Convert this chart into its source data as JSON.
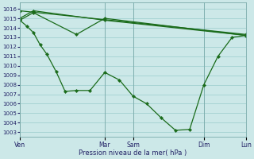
{
  "xlabel": "Pression niveau de la mer( hPa )",
  "yticks": [
    1003,
    1004,
    1005,
    1006,
    1007,
    1008,
    1009,
    1010,
    1011,
    1012,
    1013,
    1014,
    1015,
    1016
  ],
  "bg_color": "#cce8e8",
  "grid_color": "#99cccc",
  "line_color": "#1a6b1a",
  "day_labels": [
    "Ven",
    "Mar",
    "Sam",
    "Dim",
    "Lun"
  ],
  "day_positions": [
    0.0,
    0.375,
    0.5,
    0.8125,
    1.0
  ],
  "xlim": [
    0.0,
    1.0
  ],
  "ylim": [
    1002.5,
    1016.7
  ],
  "series_main": {
    "x": [
      0.0,
      0.03,
      0.06,
      0.09,
      0.12,
      0.16,
      0.2,
      0.25,
      0.31,
      0.375,
      0.44,
      0.5,
      0.56,
      0.625,
      0.6875,
      0.75,
      0.8125,
      0.875,
      0.9375,
      1.0
    ],
    "y": [
      1014.8,
      1014.2,
      1013.5,
      1012.2,
      1011.2,
      1009.4,
      1007.3,
      1007.4,
      1007.4,
      1009.3,
      1008.5,
      1006.8,
      1006.0,
      1004.5,
      1003.2,
      1003.3,
      1008.0,
      1011.0,
      1013.0,
      1013.2
    ]
  },
  "series_high_flat": {
    "x": [
      0.0,
      1.0
    ],
    "y": [
      1015.8,
      1013.3
    ]
  },
  "series_mid_upper": {
    "x": [
      0.0,
      0.06,
      0.375,
      1.0
    ],
    "y": [
      1015.0,
      1015.8,
      1014.8,
      1013.2
    ]
  },
  "series_mid_lower": {
    "x": [
      0.0,
      0.06,
      0.25,
      0.375,
      1.0
    ],
    "y": [
      1014.8,
      1015.6,
      1013.3,
      1015.0,
      1013.2
    ]
  }
}
